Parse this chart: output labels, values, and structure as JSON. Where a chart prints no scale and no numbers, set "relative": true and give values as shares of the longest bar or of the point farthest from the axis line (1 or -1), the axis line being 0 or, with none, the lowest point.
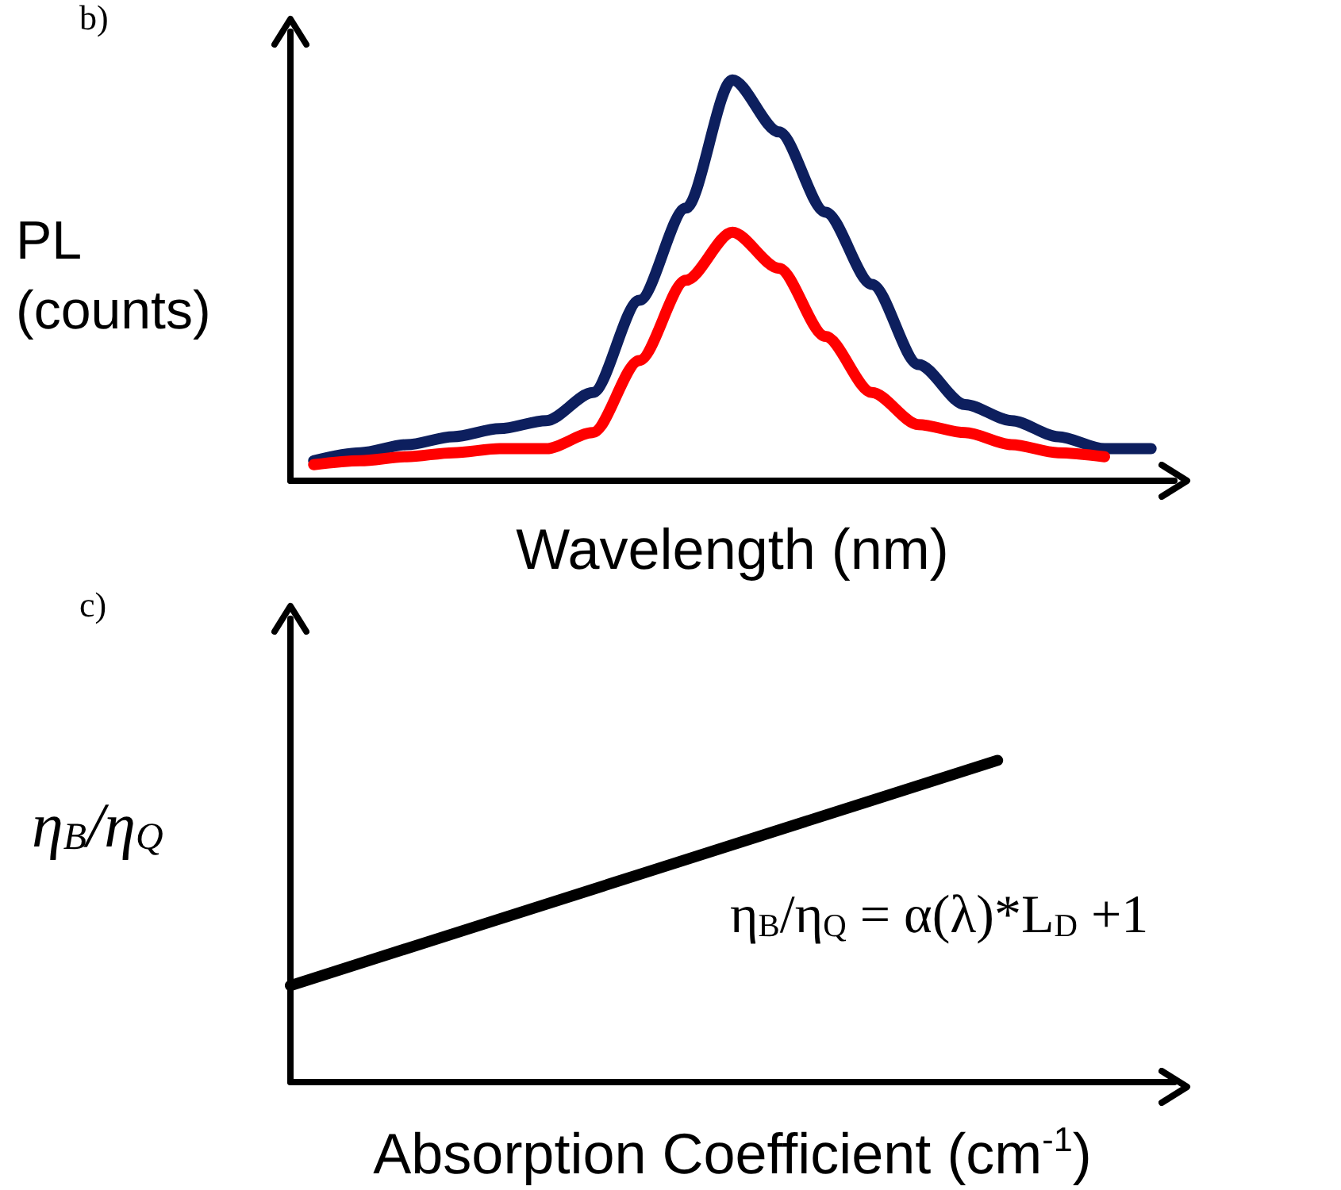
{
  "chart_data": [
    {
      "type": "line",
      "title": "b)",
      "xlabel": "Wavelength (nm)",
      "ylabel": "PL (counts)",
      "relative": true,
      "grid": false,
      "marker": "none",
      "categories": [
        null,
        null,
        null,
        null,
        null,
        null,
        null,
        null,
        null,
        null,
        null,
        null,
        null,
        null,
        null,
        null,
        null,
        null,
        null
      ],
      "series": [
        {
          "color": "#0d1f5e",
          "values": [
            0.05,
            0.07,
            0.09,
            0.11,
            0.13,
            0.15,
            0.22,
            0.45,
            0.68,
            1,
            0.87,
            0.67,
            0.49,
            0.29,
            0.19,
            0.15,
            0.11,
            0.08,
            0.08
          ]
        },
        {
          "color": "#ff0000",
          "values": [
            0.04,
            0.05,
            0.06,
            0.07,
            0.08,
            0.08,
            0.12,
            0.3,
            0.5,
            0.62,
            0.53,
            0.36,
            0.22,
            0.14,
            0.12,
            0.09,
            0.07,
            0.06,
            null
          ]
        }
      ]
    },
    {
      "type": "line",
      "title": "c)",
      "xlabel": "Absorption Coefficient (cm$^{-1}$)",
      "ylabel": "η$_{B}$/η$_{Q}$",
      "relative": true,
      "grid": false,
      "marker": "none",
      "annotations": [
        "η$_{B}$/η$_{Q}$ = α(λ)*L$_{D}$ +1"
      ],
      "categories": [
        null,
        null,
        null,
        null,
        null,
        null
      ],
      "series": [
        {
          "color": "#000000",
          "values": [
            0.3,
            0.475,
            0.65,
            0.825,
            1,
            null
          ]
        }
      ]
    }
  ]
}
